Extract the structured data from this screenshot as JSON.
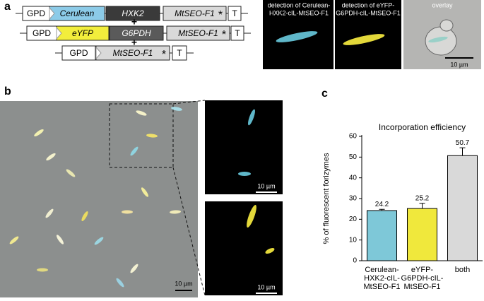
{
  "panels": [
    "a",
    "b",
    "c"
  ],
  "constructs": [
    [
      "GPD",
      "Cerulean",
      "HXK2",
      "MtSEO-F1",
      "T"
    ],
    [
      "GPD",
      "eYFP",
      "G6PDH",
      "MtSEO-F1",
      "T"
    ],
    [
      "GPD",
      "MtSEO-F1",
      "T"
    ]
  ],
  "star": "*",
  "plus": "+",
  "images": [
    [
      "detection of Cerulean-",
      "HXK2-cIL-MtSEO-F1"
    ],
    [
      "detection of eYFP-",
      "G6PDH-cIL-MtSEO-F1"
    ],
    [
      "overlay"
    ]
  ],
  "scale_bar": "10 µm",
  "chart_data": {
    "type": "bar",
    "title": "Incorporation efficiency",
    "y_label": "% of fluorescent forizymes",
    "categories": [
      [
        "Cerulean-",
        "HXK2-cIL-",
        "MtSEO-F1"
      ],
      [
        "eYFP-",
        "G6PDH-cIL-",
        "MtSEO-F1"
      ],
      [
        "both"
      ]
    ],
    "values": [
      24.2,
      25.2,
      50.7
    ],
    "errors": [
      0.6,
      2.5,
      3.8
    ],
    "colors": [
      "#7ec8d8",
      "#f0e83c",
      "#d9d9d9"
    ],
    "ylim": [
      0,
      60
    ],
    "yticks": [
      0,
      10,
      20,
      30,
      40,
      50,
      60
    ]
  }
}
